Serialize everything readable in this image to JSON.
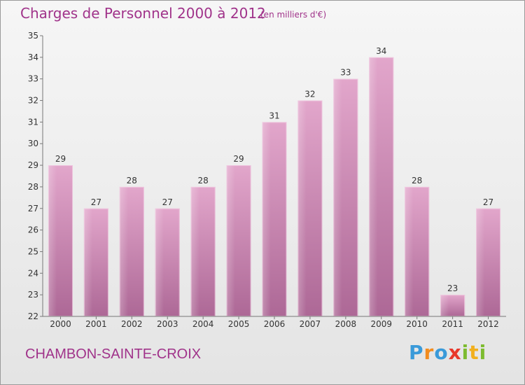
{
  "header": {
    "title": "Charges de Personnel 2000 à 2012",
    "unit_note": "(en milliers d'€)"
  },
  "footer": {
    "commune": "CHAMBON-SAINTE-CROIX",
    "logo": {
      "letters": [
        "P",
        "r",
        "o",
        "x",
        "i",
        "t",
        "i"
      ],
      "colors": [
        "#3a9ad9",
        "#f28c1e",
        "#3a9ad9",
        "#e8372a",
        "#7dbb2f",
        "#f2b01e",
        "#7dbb2f"
      ]
    }
  },
  "chart_data": {
    "type": "bar",
    "title": "Charges de Personnel 2000 à 2012",
    "subtitle": "(en milliers d'€)",
    "xlabel": "",
    "ylabel": "",
    "categories": [
      "2000",
      "2001",
      "2002",
      "2003",
      "2004",
      "2005",
      "2006",
      "2007",
      "2008",
      "2009",
      "2010",
      "2011",
      "2012"
    ],
    "values": [
      29,
      27,
      28,
      27,
      28,
      29,
      31,
      32,
      33,
      34,
      28,
      23,
      27
    ],
    "ylim": [
      22,
      35
    ],
    "yticks": [
      22,
      23,
      24,
      25,
      26,
      27,
      28,
      29,
      30,
      31,
      32,
      33,
      34,
      35
    ],
    "grid": false,
    "legend": "none",
    "bar_color": "#c77aaa",
    "bar_color_light": "#e2a6cb",
    "bar_color_dark": "#ad6896"
  }
}
